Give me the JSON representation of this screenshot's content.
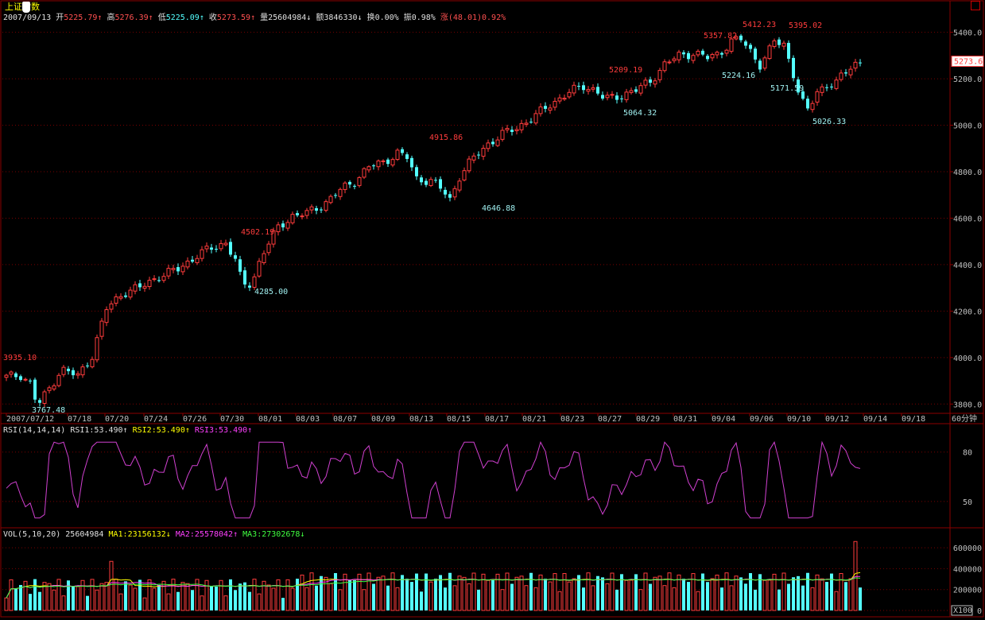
{
  "header": {
    "index_name": "上证指数",
    "date": "2007/09/13",
    "open_label": "开",
    "open": "5225.79",
    "high_label": "高",
    "high": "5276.39",
    "low_label": "低",
    "low": "5225.09",
    "close_label": "收",
    "close": "5273.59",
    "volume_label": "量",
    "volume": "25604984",
    "amount_label": "额",
    "amount": "3846330",
    "turnover_label": "换",
    "turnover": "0.00%",
    "amplitude_label": "振",
    "amplitude": "0.98%",
    "change_label": "涨",
    "change": "(48.01)",
    "change_pct": "0.92%"
  },
  "price_axis": {
    "ticks": [
      "5400.0",
      "5200.0",
      "5000.0",
      "4800.0",
      "4600.0",
      "4400.0",
      "4200.0",
      "4000.0",
      "3800.0"
    ],
    "current_marker": "5273.6"
  },
  "date_axis": {
    "labels": [
      "2007/07/12",
      "07/18",
      "07/20",
      "07/24",
      "07/26",
      "07/30",
      "08/01",
      "08/03",
      "08/07",
      "08/09",
      "08/13",
      "08/15",
      "08/17",
      "08/21",
      "08/23",
      "08/27",
      "08/29",
      "08/31",
      "09/04",
      "09/06",
      "09/10",
      "09/12",
      "09/14",
      "09/18"
    ],
    "period": "60分钟"
  },
  "price_annotations": {
    "highs": [
      "3935.10",
      "4502.19",
      "4915.86",
      "5209.19",
      "5357.82",
      "5412.23",
      "5395.02"
    ],
    "lows": [
      "3767.48",
      "4285.00",
      "4646.88",
      "5064.32",
      "5224.16",
      "5171.59",
      "5026.33"
    ]
  },
  "rsi": {
    "label": "RSI(14,14,14)",
    "rsi1_label": "RSI1:",
    "rsi1": "53.490",
    "rsi2_label": "RSI2:",
    "rsi2": "53.490",
    "rsi3_label": "RSI3:",
    "rsi3": "53.490",
    "ticks": [
      "80",
      "50"
    ]
  },
  "volume": {
    "label": "VOL(5,10,20)",
    "value": "25604984",
    "ma1_label": "MA1:",
    "ma1": "23156132",
    "ma2_label": "MA2:",
    "ma2": "25578042",
    "ma3_label": "MA3:",
    "ma3": "27302678",
    "ticks": [
      "600000",
      "400000",
      "200000",
      "0"
    ],
    "unit": "X100"
  },
  "colors": {
    "up": "#ff3c3c",
    "down": "#54ffff",
    "grid": "#8b0000",
    "rsi_line": "#d040d0",
    "ma1": "#ffff00",
    "ma2": "#ff40ff",
    "ma3": "#40ff40"
  }
}
